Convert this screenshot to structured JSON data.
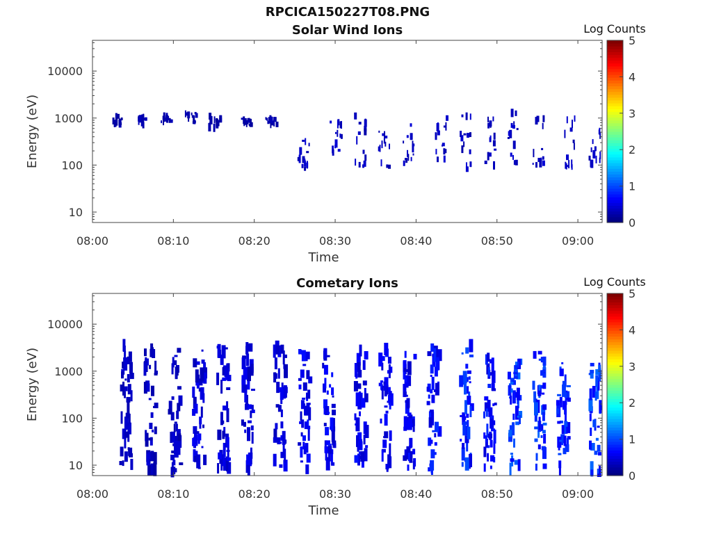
{
  "figure": {
    "title": "RPCICA150227T08.PNG"
  },
  "colorbar": {
    "label": "Log Counts",
    "ticks": [
      "0",
      "1",
      "2",
      "3",
      "4",
      "5"
    ],
    "range": [
      0,
      5
    ],
    "colormap": "jet"
  },
  "chart_data": [
    {
      "type": "heatmap",
      "title": "Solar Wind Ions",
      "xlabel": "Time",
      "ylabel": "Energy (eV)",
      "x_ticks": [
        "08:00",
        "08:10",
        "08:20",
        "08:30",
        "08:40",
        "08:50",
        "09:00"
      ],
      "x_range": [
        "08:00",
        "09:03"
      ],
      "y_scale": "log",
      "y_ticks": [
        "10",
        "100",
        "1000",
        "10000"
      ],
      "y_range": [
        6,
        45000
      ],
      "colorbar_label": "Log Counts",
      "color_range": [
        0,
        5
      ],
      "clusters": [
        {
          "t": "08:03",
          "e_min": 700,
          "e_max": 1100,
          "level": 0.2
        },
        {
          "t": "08:06",
          "e_min": 700,
          "e_max": 1100,
          "level": 0.2
        },
        {
          "t": "08:09",
          "e_min": 800,
          "e_max": 1100,
          "level": 0.2
        },
        {
          "t": "08:12",
          "e_min": 700,
          "e_max": 1300,
          "level": 0.2
        },
        {
          "t": "08:15",
          "e_min": 600,
          "e_max": 1100,
          "level": 0.2
        },
        {
          "t": "08:19",
          "e_min": 700,
          "e_max": 1000,
          "level": 0.2
        },
        {
          "t": "08:22",
          "e_min": 700,
          "e_max": 1000,
          "level": 0.2
        },
        {
          "t": "08:26",
          "e_min": 80,
          "e_max": 400,
          "level": 0.3
        },
        {
          "t": "08:30",
          "e_min": 100,
          "e_max": 900,
          "level": 0.3
        },
        {
          "t": "08:33",
          "e_min": 80,
          "e_max": 1200,
          "level": 0.3
        },
        {
          "t": "08:36",
          "e_min": 90,
          "e_max": 600,
          "level": 0.3
        },
        {
          "t": "08:39",
          "e_min": 90,
          "e_max": 900,
          "level": 0.3
        },
        {
          "t": "08:43",
          "e_min": 100,
          "e_max": 1100,
          "level": 0.3
        },
        {
          "t": "08:46",
          "e_min": 80,
          "e_max": 1200,
          "level": 0.3
        },
        {
          "t": "08:49",
          "e_min": 90,
          "e_max": 1200,
          "level": 0.3
        },
        {
          "t": "08:52",
          "e_min": 90,
          "e_max": 1400,
          "level": 0.3
        },
        {
          "t": "08:55",
          "e_min": 90,
          "e_max": 1100,
          "level": 0.3
        },
        {
          "t": "08:59",
          "e_min": 90,
          "e_max": 1200,
          "level": 0.3
        },
        {
          "t": "09:02",
          "e_min": 100,
          "e_max": 700,
          "level": 0.3
        }
      ]
    },
    {
      "type": "heatmap",
      "title": "Cometary Ions",
      "xlabel": "Time",
      "ylabel": "Energy (eV)",
      "x_ticks": [
        "08:00",
        "08:10",
        "08:20",
        "08:30",
        "08:40",
        "08:50",
        "09:00"
      ],
      "x_range": [
        "08:00",
        "09:03"
      ],
      "y_scale": "log",
      "y_ticks": [
        "10",
        "100",
        "1000",
        "10000"
      ],
      "y_range": [
        6,
        45000
      ],
      "colorbar_label": "Log Counts",
      "color_range": [
        0,
        5
      ],
      "clusters": [
        {
          "t": "08:04",
          "e_min": 10,
          "e_max": 4000,
          "level": 0.3
        },
        {
          "t": "08:07",
          "e_min": 6,
          "e_max": 3500,
          "level": 0.3
        },
        {
          "t": "08:10",
          "e_min": 6,
          "e_max": 3000,
          "level": 0.3
        },
        {
          "t": "08:13",
          "e_min": 8,
          "e_max": 3500,
          "level": 0.4
        },
        {
          "t": "08:16",
          "e_min": 8,
          "e_max": 3500,
          "level": 0.4
        },
        {
          "t": "08:19",
          "e_min": 8,
          "e_max": 3500,
          "level": 0.4
        },
        {
          "t": "08:23",
          "e_min": 6,
          "e_max": 3500,
          "level": 0.4
        },
        {
          "t": "08:26",
          "e_min": 8,
          "e_max": 3000,
          "level": 0.5
        },
        {
          "t": "08:29",
          "e_min": 8,
          "e_max": 3000,
          "level": 0.5
        },
        {
          "t": "08:33",
          "e_min": 8,
          "e_max": 3500,
          "level": 0.5
        },
        {
          "t": "08:36",
          "e_min": 8,
          "e_max": 3000,
          "level": 0.5
        },
        {
          "t": "08:39",
          "e_min": 8,
          "e_max": 3000,
          "level": 0.5
        },
        {
          "t": "08:42",
          "e_min": 8,
          "e_max": 3500,
          "level": 0.6
        },
        {
          "t": "08:46",
          "e_min": 8,
          "e_max": 3500,
          "level": 0.7
        },
        {
          "t": "08:49",
          "e_min": 8,
          "e_max": 2500,
          "level": 0.6
        },
        {
          "t": "08:52",
          "e_min": 8,
          "e_max": 2000,
          "level": 0.8
        },
        {
          "t": "08:55",
          "e_min": 8,
          "e_max": 2500,
          "level": 0.8
        },
        {
          "t": "08:58",
          "e_min": 8,
          "e_max": 2000,
          "level": 0.7
        },
        {
          "t": "09:02",
          "e_min": 6,
          "e_max": 1500,
          "level": 0.8
        }
      ]
    }
  ]
}
